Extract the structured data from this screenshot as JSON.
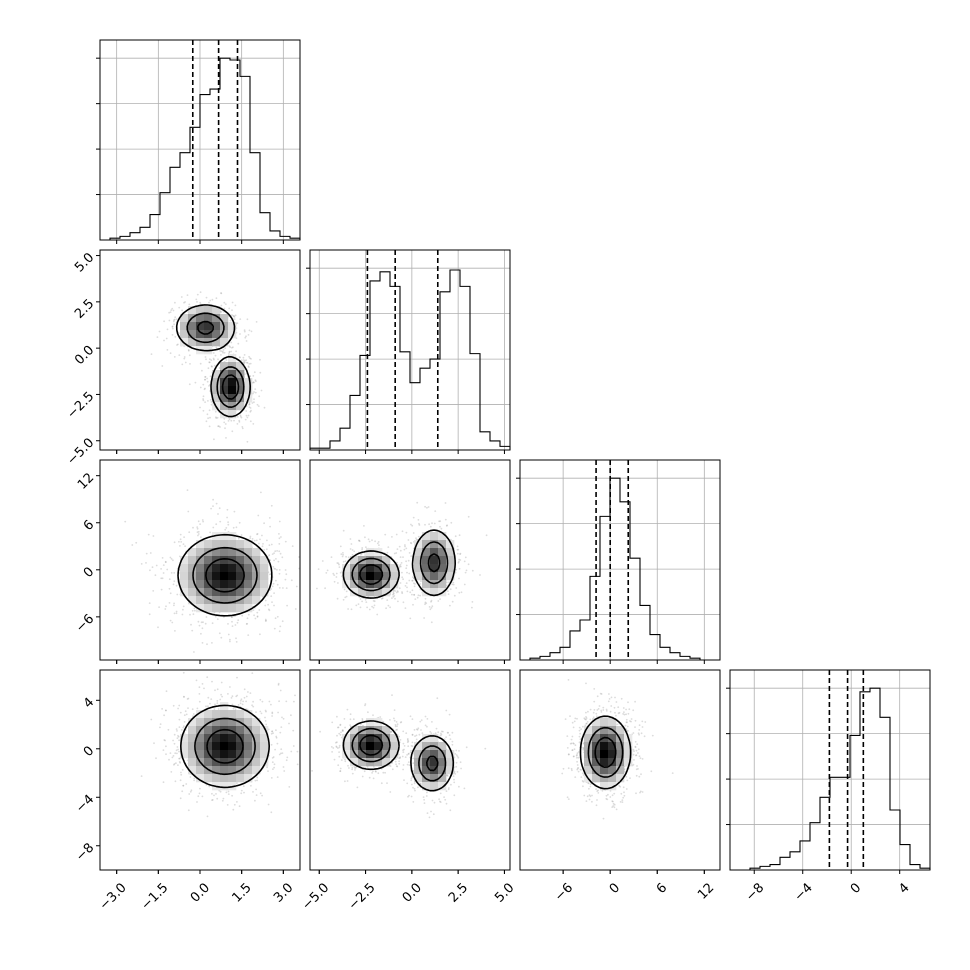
{
  "chart_data": {
    "type": "corner",
    "grid": true,
    "parameters": [
      {
        "range": [
          -3.6,
          3.6
        ],
        "ticks": [
          -3.0,
          -1.5,
          0.0,
          1.5,
          3.0
        ],
        "tick_labels": [
          "−3.0",
          "−1.5",
          "0.0",
          "1.5",
          "3.0"
        ]
      },
      {
        "range": [
          -5.5,
          5.3
        ],
        "ticks": [
          -5.0,
          -2.5,
          0.0,
          2.5,
          5.0
        ],
        "tick_labels": [
          "−5.0",
          "−2.5",
          "0.0",
          "2.5",
          "5.0"
        ]
      },
      {
        "range": [
          -11.5,
          14.0
        ],
        "ticks": [
          -6,
          0,
          6,
          12
        ],
        "tick_labels": [
          "−6",
          "0",
          "6",
          "12"
        ]
      },
      {
        "range": [
          -10.0,
          6.5
        ],
        "ticks": [
          -8,
          -4,
          0,
          4
        ],
        "tick_labels": [
          "−8",
          "−4",
          "0",
          "4"
        ]
      }
    ],
    "histograms": [
      {
        "bin_start": -3.6,
        "bin_width": 0.36,
        "ymax": 1.1,
        "counts": [
          0,
          0.01,
          0.02,
          0.04,
          0.07,
          0.14,
          0.26,
          0.4,
          0.48,
          0.62,
          0.8,
          0.83,
          1.0,
          0.99,
          0.9,
          0.48,
          0.15,
          0.05,
          0.02,
          0.01
        ],
        "quantiles": [
          -0.26,
          0.67,
          1.35
        ]
      },
      {
        "bin_start": -5.5,
        "bin_width": 0.54,
        "ymax": 1.1,
        "counts": [
          0.01,
          0.01,
          0.05,
          0.12,
          0.3,
          0.52,
          0.93,
          0.98,
          0.9,
          0.54,
          0.37,
          0.45,
          0.5,
          0.87,
          0.99,
          0.9,
          0.53,
          0.1,
          0.05,
          0.02
        ],
        "quantiles": [
          -2.4,
          -0.9,
          1.4
        ]
      },
      {
        "bin_start": -11.5,
        "bin_width": 1.275,
        "ymax": 1.1,
        "counts": [
          0,
          0.01,
          0.02,
          0.04,
          0.07,
          0.16,
          0.22,
          0.46,
          0.79,
          1.0,
          0.87,
          0.56,
          0.3,
          0.14,
          0.07,
          0.04,
          0.02,
          0.01,
          0,
          0
        ],
        "quantiles": [
          -1.8,
          0.0,
          2.3
        ]
      },
      {
        "bin_start": -10.0,
        "bin_width": 0.825,
        "ymax": 1.1,
        "counts": [
          0,
          0,
          0.01,
          0.02,
          0.03,
          0.07,
          0.1,
          0.16,
          0.26,
          0.4,
          0.51,
          0.51,
          0.74,
          0.98,
          1.0,
          0.84,
          0.33,
          0.14,
          0.03,
          0.01
        ],
        "quantiles": [
          -1.8,
          -0.3,
          1.0
        ]
      }
    ],
    "pairs": [
      {
        "row": 1,
        "col": 0,
        "modes": [
          {
            "cx": 0.2,
            "cy": 1.1,
            "sx": 0.55,
            "sy": 0.65,
            "w": 0.45
          },
          {
            "cx": 1.1,
            "cy": -2.1,
            "sx": 0.35,
            "sy": 0.8,
            "w": 0.55
          }
        ]
      },
      {
        "row": 2,
        "col": 0,
        "modes": [
          {
            "cx": 0.9,
            "cy": -0.7,
            "sx": 0.85,
            "sy": 2.6,
            "w": 1.0
          }
        ]
      },
      {
        "row": 2,
        "col": 1,
        "modes": [
          {
            "cx": -2.2,
            "cy": -0.6,
            "sx": 0.75,
            "sy": 1.5,
            "w": 0.55
          },
          {
            "cx": 1.2,
            "cy": 0.9,
            "sx": 0.6,
            "sy": 2.2,
            "w": 0.45
          }
        ]
      },
      {
        "row": 3,
        "col": 0,
        "modes": [
          {
            "cx": 0.9,
            "cy": 0.2,
            "sx": 0.8,
            "sy": 1.7,
            "w": 1.0
          }
        ]
      },
      {
        "row": 3,
        "col": 1,
        "modes": [
          {
            "cx": -2.2,
            "cy": 0.3,
            "sx": 0.75,
            "sy": 1.0,
            "w": 0.55
          },
          {
            "cx": 1.1,
            "cy": -1.2,
            "sx": 0.6,
            "sy": 1.2,
            "w": 0.45
          }
        ]
      },
      {
        "row": 3,
        "col": 2,
        "modes": [
          {
            "cx": -0.6,
            "cy": -0.3,
            "sx": 1.6,
            "sy": 1.5,
            "w": 1.0
          }
        ]
      }
    ]
  }
}
